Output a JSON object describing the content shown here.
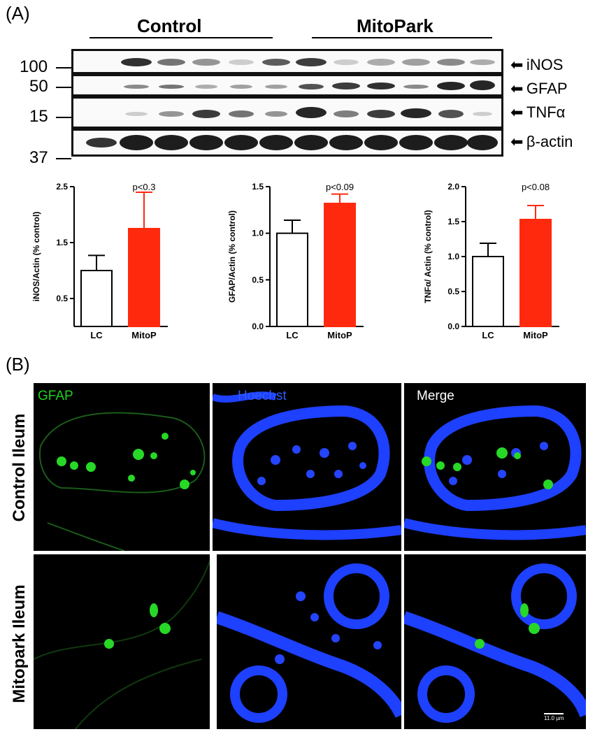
{
  "panel_a": {
    "label": "(A)",
    "groups": [
      "Control",
      "MitoPark"
    ],
    "mw_markers": [
      "100",
      "50",
      "15",
      "37"
    ],
    "proteins": [
      "iNOS",
      "GFAP",
      "TNFα",
      "β-actin"
    ],
    "colors": {
      "control_fill": "#ffffff",
      "mitopark_fill": "#ff2a0e",
      "mitopark_error": "#ff2a0e"
    }
  },
  "panel_b": {
    "label": "(B)",
    "stains": [
      "GFAP",
      "Hoechst",
      "Merge"
    ],
    "stain_colors": {
      "gfap": "#1fd11f",
      "hoechst": "#2f5bff",
      "merge": "#ffffff"
    },
    "rows": [
      "Control Ileum",
      "Mitopark Ileum"
    ],
    "scale_bar": "11.0 µm"
  },
  "chart_data": [
    {
      "type": "bar",
      "categories": [
        "LC",
        "MitoP"
      ],
      "values": [
        1.0,
        1.75
      ],
      "errors": [
        0.27,
        0.65
      ],
      "ylabel": "iNOS/Actin (% control)",
      "ylim": [
        0,
        2.5
      ],
      "yticks": [
        "0.5",
        "1.5",
        "2.5"
      ],
      "ytick_values": [
        0.5,
        1.5,
        2.5
      ],
      "annotation": "p<0.3"
    },
    {
      "type": "bar",
      "categories": [
        "LC",
        "MitoP"
      ],
      "values": [
        1.0,
        1.32
      ],
      "errors": [
        0.14,
        0.1
      ],
      "ylabel": "GFAP/Actin (% control)",
      "ylim": [
        0,
        1.5
      ],
      "yticks": [
        "0.0",
        "0.5",
        "1.0",
        "1.5"
      ],
      "ytick_values": [
        0.0,
        0.5,
        1.0,
        1.5
      ],
      "annotation": "p<0.09"
    },
    {
      "type": "bar",
      "categories": [
        "LC",
        "MitoP"
      ],
      "values": [
        1.0,
        1.53
      ],
      "errors": [
        0.19,
        0.2
      ],
      "ylabel": "TNFα/ Actin (% control)",
      "ylim": [
        0,
        2.0
      ],
      "yticks": [
        "0.0",
        "0.5",
        "1.0",
        "1.5",
        "2.0"
      ],
      "ytick_values": [
        0.0,
        0.5,
        1.0,
        1.5,
        2.0
      ],
      "annotation": "p<0.08"
    }
  ]
}
